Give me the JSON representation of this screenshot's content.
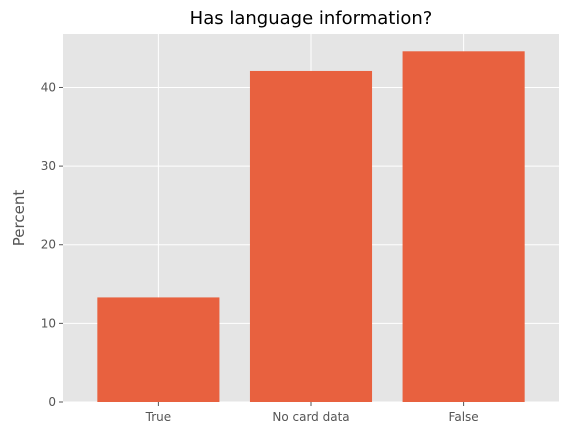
{
  "chart_data": {
    "type": "bar",
    "title": "Has language information?",
    "xlabel": "",
    "ylabel": "Percent",
    "categories": [
      "True",
      "No card data",
      "False"
    ],
    "values": [
      13.3,
      42.1,
      44.6
    ],
    "ylim": [
      0,
      46.8
    ],
    "yticks": [
      "0",
      "10",
      "20",
      "30",
      "40"
    ],
    "grid": true,
    "legend": "none",
    "colors": {
      "bar": "#E8613F",
      "plot_background": "#E5E5E5",
      "grid": "#FFFFFF"
    }
  }
}
